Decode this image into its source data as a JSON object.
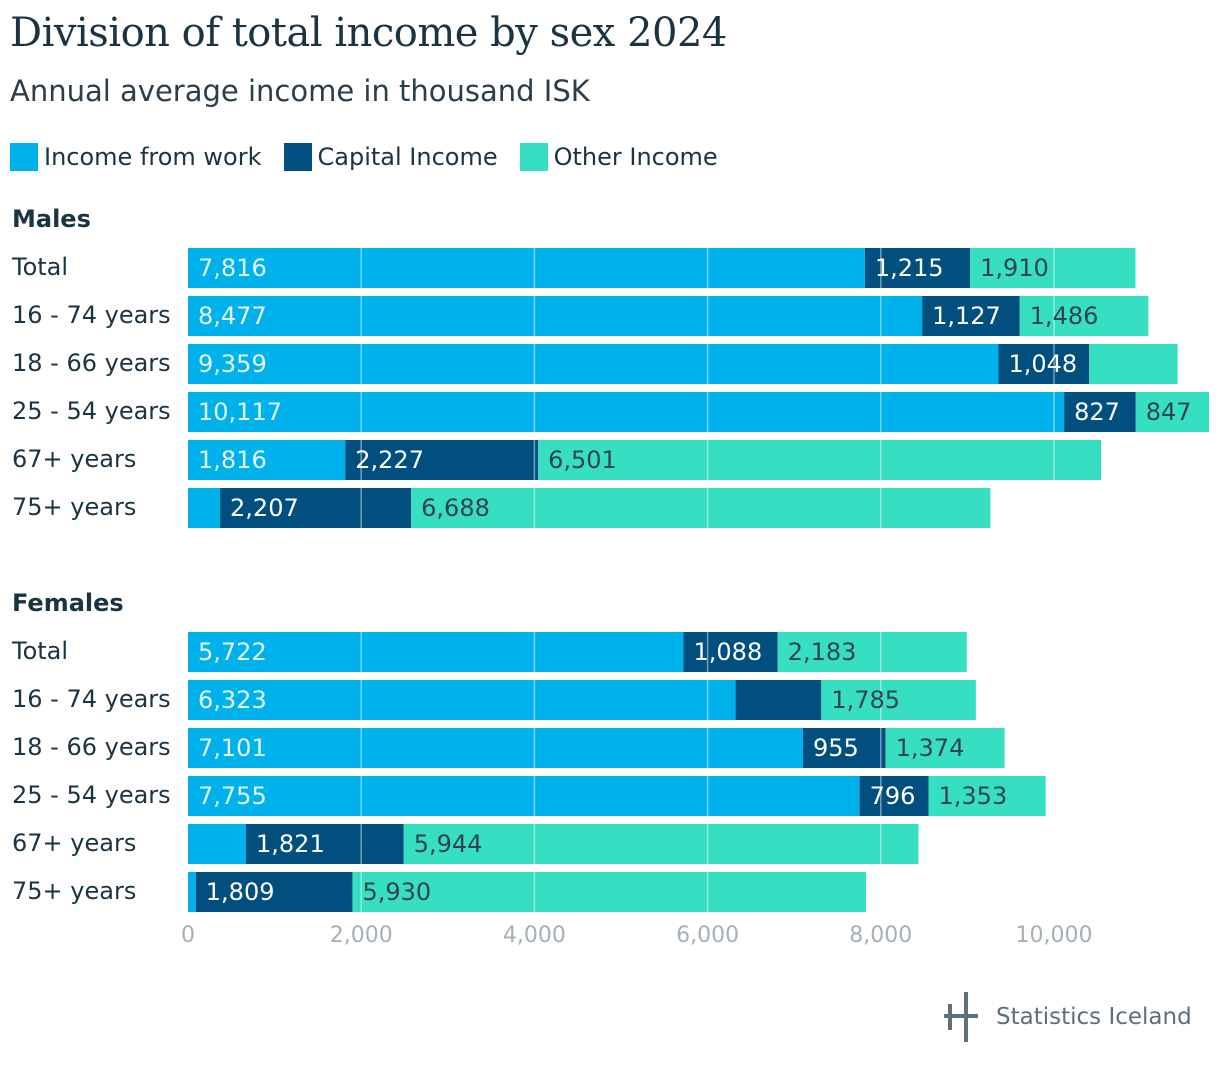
{
  "title": "Division of total income by sex 2024",
  "subtitle": "Annual average income in thousand ISK",
  "legend": [
    {
      "label": "Income from work",
      "color": "#00b2ec"
    },
    {
      "label": "Capital Income",
      "color": "#004f7f"
    },
    {
      "label": "Other Income",
      "color": "#36dfc2"
    }
  ],
  "source_logo": "Statistics Iceland",
  "chart_data": {
    "type": "bar",
    "orientation": "horizontal",
    "stacked": true,
    "xlim": [
      0,
      11800
    ],
    "x_ticks": [
      "0",
      "2,000",
      "4,000",
      "6,000",
      "8,000",
      "10,000"
    ],
    "x_tick_values": [
      0,
      2000,
      4000,
      6000,
      8000,
      10000
    ],
    "grid": true,
    "legend_position": "top-left",
    "series": [
      {
        "name": "Income from work",
        "color": "#00b2ec"
      },
      {
        "name": "Capital Income",
        "color": "#004f7f"
      },
      {
        "name": "Other Income",
        "color": "#36dfc2"
      }
    ],
    "groups": [
      {
        "name": "Males",
        "rows": [
          {
            "label": "Total",
            "values": [
              7816,
              1215,
              1910
            ],
            "labels": [
              "7,816",
              "1,215",
              "1,910"
            ]
          },
          {
            "label": "16 - 74 years",
            "values": [
              8477,
              1127,
              1486
            ],
            "labels": [
              "8,477",
              "1,127",
              "1,486"
            ]
          },
          {
            "label": "18 - 66 years",
            "values": [
              9359,
              1048,
              1020
            ],
            "labels": [
              "9,359",
              "1,048",
              ""
            ]
          },
          {
            "label": "25 - 54 years",
            "values": [
              10117,
              827,
              847
            ],
            "labels": [
              "10,117",
              "827",
              "847"
            ]
          },
          {
            "label": "67+ years",
            "values": [
              1816,
              2227,
              6501
            ],
            "labels": [
              "1,816",
              "2,227",
              "6,501"
            ]
          },
          {
            "label": "75+ years",
            "values": [
              370,
              2207,
              6688
            ],
            "labels": [
              "",
              "2,207",
              "6,688"
            ]
          }
        ]
      },
      {
        "name": "Females",
        "rows": [
          {
            "label": "Total",
            "values": [
              5722,
              1088,
              2183
            ],
            "labels": [
              "5,722",
              "1,088",
              "2,183"
            ]
          },
          {
            "label": "16 - 74 years",
            "values": [
              6323,
              990,
              1785
            ],
            "labels": [
              "6,323",
              "",
              "1,785"
            ]
          },
          {
            "label": "18 - 66 years",
            "values": [
              7101,
              955,
              1374
            ],
            "labels": [
              "7,101",
              "955",
              "1,374"
            ]
          },
          {
            "label": "25 - 54 years",
            "values": [
              7755,
              796,
              1353
            ],
            "labels": [
              "7,755",
              "796",
              "1,353"
            ]
          },
          {
            "label": "67+ years",
            "values": [
              670,
              1821,
              5944
            ],
            "labels": [
              "",
              "1,821",
              "5,944"
            ]
          },
          {
            "label": "75+ years",
            "values": [
              90,
              1809,
              5930
            ],
            "labels": [
              "",
              "1,809",
              "5,930"
            ]
          }
        ]
      }
    ]
  }
}
